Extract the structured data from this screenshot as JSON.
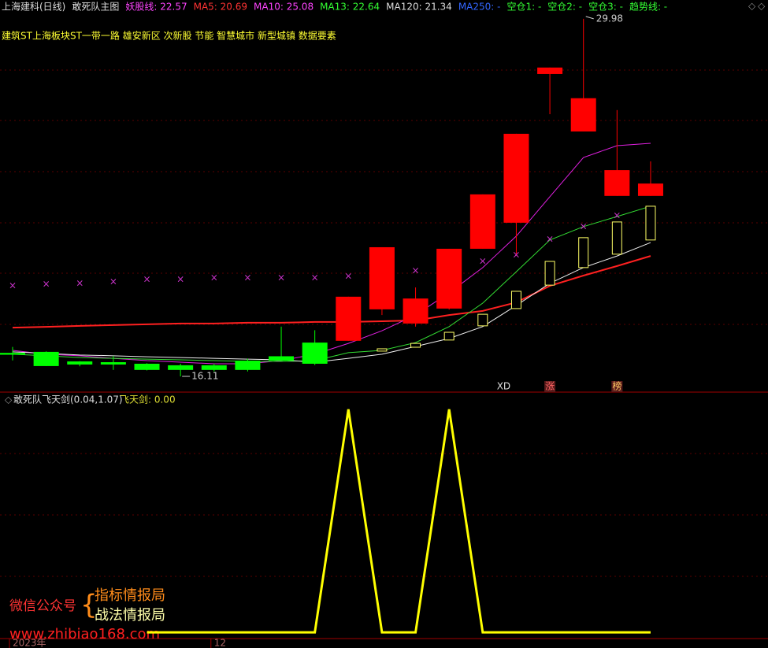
{
  "header": {
    "items": [
      {
        "text": "上海建科(日线)",
        "color": "#dddddd"
      },
      {
        "text": "敢死队主图",
        "color": "#dddddd"
      },
      {
        "text": "妖股线: 22.57",
        "color": "#ff44ff"
      },
      {
        "text": "MA5: 20.69",
        "color": "#ff3333"
      },
      {
        "text": "MA10: 25.08",
        "color": "#ff44ff"
      },
      {
        "text": "MA13: 22.64",
        "color": "#33ff33"
      },
      {
        "text": "MA120: 21.34",
        "color": "#dddddd"
      },
      {
        "text": "MA250: -",
        "color": "#3366ff"
      },
      {
        "text": "空仓1: -",
        "color": "#33ff33"
      },
      {
        "text": "空仓2: -",
        "color": "#33ff33"
      },
      {
        "text": "空仓3: -",
        "color": "#33ff33"
      },
      {
        "text": "趋势线: -",
        "color": "#33ff33"
      }
    ],
    "sectors": "建筑ST上海板块ST一带一路 雄安新区 次新股 节能 智慧城市 新型城镇 数据要素"
  },
  "watermark": {
    "account": "微信公众号",
    "line1": "指标情报局",
    "line2": "战法情报局",
    "url": "www.zhibiao168.com"
  },
  "chart_data": [
    {
      "type": "candlestick",
      "categories": [
        "2023年",
        null,
        null,
        null,
        null,
        null,
        "12",
        null,
        null,
        null,
        null,
        null,
        null,
        null,
        null,
        null,
        null,
        null,
        null,
        null
      ],
      "ylim": [
        15.53,
        30.71
      ],
      "up_color": "#ff0000",
      "down_color": "#00ff00",
      "candles": {
        "open": [
          17.02,
          17.06,
          16.69,
          16.66,
          16.6,
          16.54,
          16.54,
          16.72,
          16.89,
          17.42,
          17.49,
          18.71,
          18.16,
          18.74,
          21.06,
          22.07,
          27.84,
          25.61,
          23.11,
          23.11
        ],
        "close": [
          16.95,
          16.51,
          16.57,
          16.57,
          16.36,
          16.36,
          16.36,
          16.36,
          16.72,
          16.6,
          19.2,
          21.12,
          19.13,
          21.06,
          23.17,
          25.52,
          28.09,
          26.9,
          24.11,
          23.59
        ],
        "high": [
          17.25,
          17.08,
          16.7,
          16.9,
          16.62,
          16.6,
          16.6,
          16.8,
          18.04,
          17.9,
          19.2,
          21.12,
          19.56,
          21.06,
          23.17,
          25.52,
          28.09,
          29.98,
          26.44,
          24.45
        ],
        "low": [
          16.73,
          16.51,
          16.5,
          16.36,
          16.34,
          16.11,
          16.3,
          16.3,
          16.7,
          16.55,
          17.49,
          18.49,
          18.04,
          18.7,
          21.06,
          20.79,
          26.28,
          25.61,
          23.11,
          23.11
        ]
      },
      "series": [
        {
          "color": "#ff2020",
          "width": 2,
          "values": [
            18.0,
            18.03,
            18.07,
            18.1,
            18.13,
            18.16,
            18.16,
            18.19,
            18.19,
            18.22,
            18.22,
            18.25,
            18.28,
            18.49,
            18.65,
            18.98,
            19.62,
            20.02,
            20.39,
            20.78
          ]
        },
        {
          "color": "#e020e0",
          "width": 1,
          "values": [
            17.12,
            16.97,
            16.91,
            16.81,
            16.72,
            16.66,
            16.6,
            16.6,
            16.72,
            16.97,
            17.39,
            17.88,
            18.49,
            19.35,
            20.33,
            21.55,
            23.08,
            24.6,
            25.06,
            25.15
          ]
        },
        {
          "color": "#33dd33",
          "width": 1,
          "values": [
            16.97,
            16.91,
            16.84,
            16.81,
            16.78,
            16.75,
            16.72,
            16.69,
            16.69,
            16.72,
            17.03,
            17.12,
            17.42,
            18.04,
            18.95,
            20.17,
            21.4,
            21.92,
            22.31,
            22.71
          ]
        },
        {
          "color": "#eeeeee",
          "width": 1,
          "values": [
            17.06,
            17.0,
            16.94,
            16.91,
            16.87,
            16.84,
            16.81,
            16.78,
            16.75,
            16.66,
            16.81,
            16.97,
            17.27,
            17.58,
            18.04,
            18.86,
            19.72,
            20.33,
            20.78,
            21.3
          ]
        }
      ],
      "boxes": {
        "color": "#ffff66",
        "upper": [
          null,
          null,
          null,
          null,
          null,
          null,
          null,
          null,
          null,
          null,
          null,
          17.18,
          17.39,
          17.82,
          18.52,
          19.41,
          20.57,
          21.49,
          22.1,
          22.71
        ],
        "lower": [
          null,
          null,
          null,
          null,
          null,
          null,
          null,
          null,
          null,
          null,
          null,
          17.09,
          17.24,
          17.52,
          18.07,
          18.74,
          19.65,
          20.33,
          20.85,
          21.4
        ]
      },
      "crosses": {
        "color": "#cc33cc",
        "values": [
          19.62,
          19.69,
          19.72,
          19.78,
          19.87,
          19.87,
          19.93,
          19.93,
          19.93,
          19.93,
          19.99,
          null,
          20.2,
          null,
          20.57,
          20.81,
          21.43,
          21.92,
          22.34,
          null
        ]
      },
      "events": [
        null,
        null,
        null,
        null,
        null,
        null,
        null,
        null,
        null,
        null,
        null,
        null,
        null,
        null,
        null,
        "XD",
        "涨",
        null,
        "榜",
        null
      ]
    },
    {
      "type": "line",
      "title": "敢死队飞天剑(0.04,1.07)",
      "subtitle": "飞天剑: 0.00",
      "ylim": [
        -0.07,
        1.07
      ],
      "series": [
        {
          "color": "#ffff00",
          "values": [
            null,
            null,
            null,
            null,
            0,
            0,
            0,
            0,
            0,
            0,
            1,
            0,
            0,
            1,
            0,
            0,
            0,
            0,
            0,
            0
          ]
        }
      ]
    }
  ]
}
